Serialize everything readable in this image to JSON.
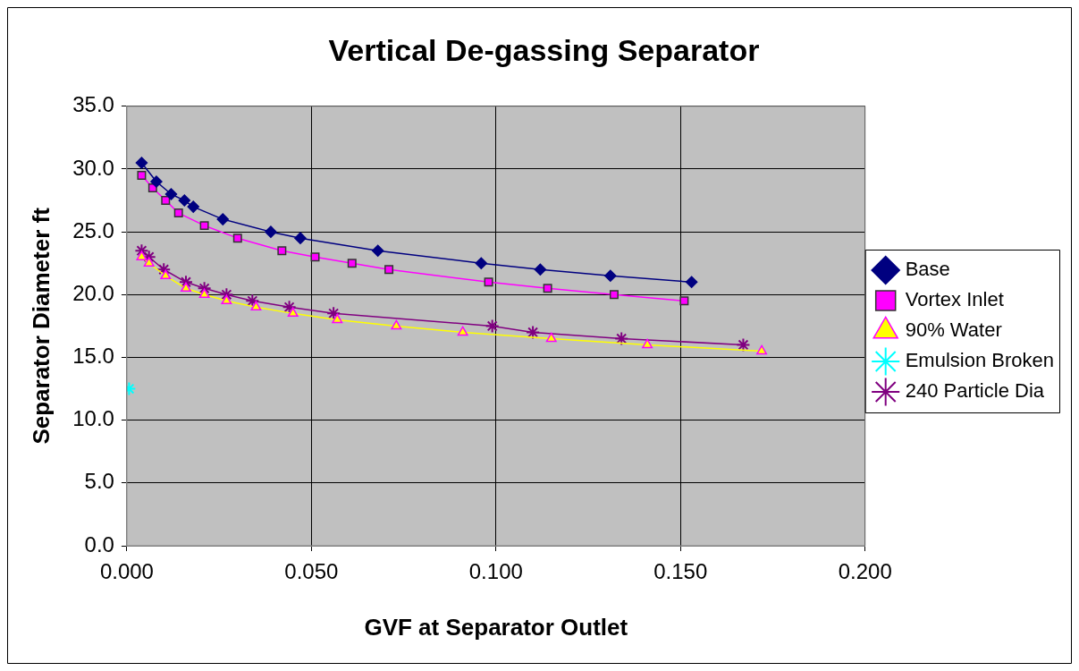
{
  "chart_data": {
    "type": "line",
    "title": "Vertical De-gassing Separator",
    "xlabel": "GVF at Separator Outlet",
    "ylabel": "Separator Diameter ft",
    "xlim": [
      0,
      0.2
    ],
    "xticks": [
      {
        "value": 0,
        "label": "0.000"
      },
      {
        "value": 0.05,
        "label": "0.050"
      },
      {
        "value": 0.1,
        "label": "0.100"
      },
      {
        "value": 0.15,
        "label": "0.150"
      },
      {
        "value": 0.2,
        "label": "0.200"
      }
    ],
    "ylim": [
      0,
      35
    ],
    "yticks": [
      {
        "value": 0,
        "label": "0.0"
      },
      {
        "value": 5,
        "label": "5.0"
      },
      {
        "value": 10,
        "label": "10.0"
      },
      {
        "value": 15,
        "label": "15.0"
      },
      {
        "value": 20,
        "label": "20.0"
      },
      {
        "value": 25,
        "label": "25.0"
      },
      {
        "value": 30,
        "label": "30.0"
      },
      {
        "value": 35,
        "label": "35.0"
      }
    ],
    "grid": true,
    "legend": "right",
    "series": [
      {
        "name": "Base",
        "color": "#000080",
        "marker": "diamond",
        "x": [
          0.004,
          0.008,
          0.012,
          0.0156,
          0.018,
          0.026,
          0.039,
          0.047,
          0.068,
          0.096,
          0.112,
          0.131,
          0.153
        ],
        "values": [
          30.5,
          29.0,
          28.0,
          27.5,
          27.0,
          26.0,
          25.0,
          24.5,
          23.5,
          22.5,
          22.0,
          21.5,
          21.0
        ]
      },
      {
        "name": "Vortex Inlet",
        "color": "#ff00ff",
        "marker": "square",
        "x": [
          0.004,
          0.007,
          0.0105,
          0.014,
          0.021,
          0.03,
          0.042,
          0.051,
          0.061,
          0.071,
          0.098,
          0.114,
          0.132,
          0.151
        ],
        "values": [
          29.5,
          28.5,
          27.5,
          26.5,
          25.5,
          24.5,
          23.5,
          23.0,
          22.5,
          22.0,
          21.0,
          20.5,
          20.0,
          19.5
        ]
      },
      {
        "name": "90% Water",
        "color": "#ffff00",
        "marker": "triangle",
        "x": [
          0.004,
          0.006,
          0.0105,
          0.016,
          0.021,
          0.027,
          0.035,
          0.045,
          0.057,
          0.073,
          0.091,
          0.115,
          0.141,
          0.172
        ],
        "values": [
          23.0,
          22.5,
          21.5,
          20.5,
          20.0,
          19.5,
          19.0,
          18.5,
          18.0,
          17.5,
          17.0,
          16.5,
          16.0,
          15.5
        ]
      },
      {
        "name": "Emulsion Broken",
        "color": "#00ffff",
        "marker": "cross",
        "x": [
          0.0006
        ],
        "values": [
          12.5
        ]
      },
      {
        "name": "240 Particle Dia",
        "color": "#800080",
        "marker": "cross",
        "x": [
          0.004,
          0.006,
          0.01,
          0.016,
          0.021,
          0.027,
          0.034,
          0.044,
          0.056,
          0.099,
          0.11,
          0.134,
          0.167
        ],
        "values": [
          23.5,
          23.0,
          22.0,
          21.0,
          20.5,
          20.0,
          19.5,
          19.0,
          18.5,
          17.5,
          17.0,
          16.5,
          16.0
        ]
      }
    ]
  }
}
